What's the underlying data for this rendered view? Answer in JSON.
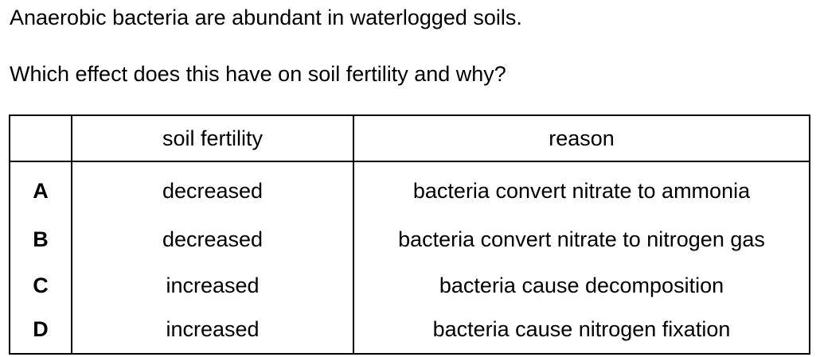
{
  "question": {
    "stem": "Anaerobic bacteria are abundant in waterlogged soils.",
    "prompt": "Which effect does this have on soil fertility and why?"
  },
  "table": {
    "headers": {
      "letter": "",
      "soil_fertility": "soil fertility",
      "reason": "reason"
    },
    "rows": [
      {
        "letter": "A",
        "soil_fertility": "decreased",
        "reason": "bacteria convert nitrate to ammonia"
      },
      {
        "letter": "B",
        "soil_fertility": "decreased",
        "reason": "bacteria convert nitrate to nitrogen gas"
      },
      {
        "letter": "C",
        "soil_fertility": "increased",
        "reason": "bacteria cause decomposition"
      },
      {
        "letter": "D",
        "soil_fertility": "increased",
        "reason": "bacteria cause nitrogen fixation"
      }
    ]
  }
}
